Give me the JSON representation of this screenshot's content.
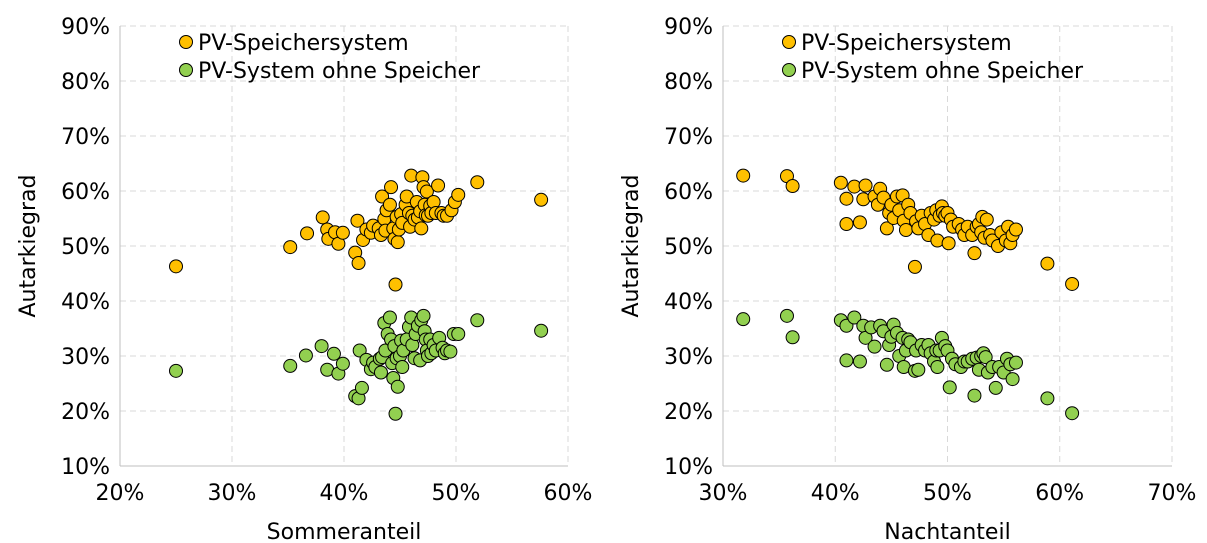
{
  "chart_data": [
    {
      "type": "scatter",
      "xlabel": "Sommeranteil",
      "ylabel": "Autarkiegrad",
      "xlim": [
        0.2,
        0.6
      ],
      "ylim": [
        0.1,
        0.9
      ],
      "xticks": [
        0.2,
        0.3,
        0.4,
        0.5,
        0.6
      ],
      "yticks": [
        0.1,
        0.2,
        0.3,
        0.4,
        0.5,
        0.6,
        0.7,
        0.8,
        0.9
      ],
      "xtick_labels": [
        "20%",
        "30%",
        "40%",
        "50%",
        "60%"
      ],
      "ytick_labels": [
        "10%",
        "20%",
        "30%",
        "40%",
        "50%",
        "60%",
        "70%",
        "80%",
        "90%"
      ],
      "grid": true,
      "legend_position": "top",
      "series": [
        {
          "name": "PV-Speichersystem",
          "color": "#FFC000",
          "points": [
            [
              0.25,
              0.463
            ],
            [
              0.352,
              0.498
            ],
            [
              0.367,
              0.523
            ],
            [
              0.381,
              0.552
            ],
            [
              0.385,
              0.53
            ],
            [
              0.386,
              0.513
            ],
            [
              0.392,
              0.525
            ],
            [
              0.395,
              0.504
            ],
            [
              0.399,
              0.524
            ],
            [
              0.41,
              0.488
            ],
            [
              0.412,
              0.546
            ],
            [
              0.413,
              0.469
            ],
            [
              0.417,
              0.511
            ],
            [
              0.42,
              0.53
            ],
            [
              0.424,
              0.524
            ],
            [
              0.426,
              0.537
            ],
            [
              0.431,
              0.532
            ],
            [
              0.433,
              0.52
            ],
            [
              0.434,
              0.59
            ],
            [
              0.436,
              0.549
            ],
            [
              0.437,
              0.528
            ],
            [
              0.438,
              0.565
            ],
            [
              0.441,
              0.575
            ],
            [
              0.442,
              0.607
            ],
            [
              0.444,
              0.532
            ],
            [
              0.445,
              0.513
            ],
            [
              0.446,
              0.43
            ],
            [
              0.447,
              0.553
            ],
            [
              0.448,
              0.507
            ],
            [
              0.449,
              0.53
            ],
            [
              0.451,
              0.558
            ],
            [
              0.452,
              0.542
            ],
            [
              0.455,
              0.575
            ],
            [
              0.456,
              0.59
            ],
            [
              0.458,
              0.56
            ],
            [
              0.459,
              0.535
            ],
            [
              0.46,
              0.628
            ],
            [
              0.461,
              0.555
            ],
            [
              0.463,
              0.548
            ],
            [
              0.465,
              0.58
            ],
            [
              0.466,
              0.552
            ],
            [
              0.468,
              0.563
            ],
            [
              0.469,
              0.532
            ],
            [
              0.47,
              0.625
            ],
            [
              0.471,
              0.607
            ],
            [
              0.472,
              0.575
            ],
            [
              0.473,
              0.556
            ],
            [
              0.474,
              0.599
            ],
            [
              0.475,
              0.555
            ],
            [
              0.477,
              0.573
            ],
            [
              0.478,
              0.56
            ],
            [
              0.48,
              0.58
            ],
            [
              0.482,
              0.56
            ],
            [
              0.484,
              0.61
            ],
            [
              0.487,
              0.56
            ],
            [
              0.489,
              0.555
            ],
            [
              0.492,
              0.555
            ],
            [
              0.496,
              0.565
            ],
            [
              0.499,
              0.58
            ],
            [
              0.502,
              0.593
            ],
            [
              0.519,
              0.616
            ],
            [
              0.576,
              0.584
            ]
          ]
        },
        {
          "name": "PV-System ohne Speicher",
          "color": "#92D050",
          "points": [
            [
              0.25,
              0.273
            ],
            [
              0.352,
              0.282
            ],
            [
              0.366,
              0.301
            ],
            [
              0.38,
              0.318
            ],
            [
              0.385,
              0.275
            ],
            [
              0.391,
              0.304
            ],
            [
              0.395,
              0.268
            ],
            [
              0.399,
              0.286
            ],
            [
              0.41,
              0.227
            ],
            [
              0.413,
              0.223
            ],
            [
              0.414,
              0.31
            ],
            [
              0.416,
              0.242
            ],
            [
              0.42,
              0.293
            ],
            [
              0.424,
              0.276
            ],
            [
              0.426,
              0.288
            ],
            [
              0.428,
              0.28
            ],
            [
              0.432,
              0.295
            ],
            [
              0.433,
              0.27
            ],
            [
              0.434,
              0.298
            ],
            [
              0.436,
              0.36
            ],
            [
              0.437,
              0.31
            ],
            [
              0.439,
              0.34
            ],
            [
              0.441,
              0.37
            ],
            [
              0.442,
              0.33
            ],
            [
              0.443,
              0.287
            ],
            [
              0.444,
              0.26
            ],
            [
              0.445,
              0.318
            ],
            [
              0.446,
              0.195
            ],
            [
              0.447,
              0.296
            ],
            [
              0.448,
              0.244
            ],
            [
              0.45,
              0.3
            ],
            [
              0.451,
              0.328
            ],
            [
              0.452,
              0.28
            ],
            [
              0.453,
              0.31
            ],
            [
              0.456,
              0.33
            ],
            [
              0.458,
              0.353
            ],
            [
              0.46,
              0.37
            ],
            [
              0.461,
              0.32
            ],
            [
              0.463,
              0.296
            ],
            [
              0.464,
              0.34
            ],
            [
              0.466,
              0.355
            ],
            [
              0.468,
              0.292
            ],
            [
              0.469,
              0.365
            ],
            [
              0.471,
              0.373
            ],
            [
              0.472,
              0.345
            ],
            [
              0.473,
              0.33
            ],
            [
              0.474,
              0.31
            ],
            [
              0.475,
              0.3
            ],
            [
              0.477,
              0.33
            ],
            [
              0.478,
              0.305
            ],
            [
              0.48,
              0.32
            ],
            [
              0.482,
              0.31
            ],
            [
              0.485,
              0.333
            ],
            [
              0.488,
              0.315
            ],
            [
              0.49,
              0.305
            ],
            [
              0.492,
              0.31
            ],
            [
              0.495,
              0.308
            ],
            [
              0.498,
              0.34
            ],
            [
              0.502,
              0.34
            ],
            [
              0.519,
              0.365
            ],
            [
              0.576,
              0.346
            ]
          ]
        }
      ]
    },
    {
      "type": "scatter",
      "xlabel": "Nachtanteil",
      "ylabel": "Autarkiegrad",
      "xlim": [
        0.3,
        0.7
      ],
      "ylim": [
        0.1,
        0.9
      ],
      "xticks": [
        0.3,
        0.4,
        0.5,
        0.6,
        0.7
      ],
      "yticks": [
        0.1,
        0.2,
        0.3,
        0.4,
        0.5,
        0.6,
        0.7,
        0.8,
        0.9
      ],
      "xtick_labels": [
        "30%",
        "40%",
        "50%",
        "60%",
        "70%"
      ],
      "ytick_labels": [
        "10%",
        "20%",
        "30%",
        "40%",
        "50%",
        "60%",
        "70%",
        "80%",
        "90%"
      ],
      "grid": true,
      "legend_position": "top",
      "series": [
        {
          "name": "PV-Speichersystem",
          "color": "#FFC000",
          "points": [
            [
              0.318,
              0.628
            ],
            [
              0.357,
              0.627
            ],
            [
              0.362,
              0.609
            ],
            [
              0.405,
              0.615
            ],
            [
              0.41,
              0.586
            ],
            [
              0.41,
              0.54
            ],
            [
              0.417,
              0.608
            ],
            [
              0.422,
              0.543
            ],
            [
              0.425,
              0.585
            ],
            [
              0.427,
              0.61
            ],
            [
              0.435,
              0.59
            ],
            [
              0.438,
              0.575
            ],
            [
              0.44,
              0.604
            ],
            [
              0.443,
              0.588
            ],
            [
              0.446,
              0.532
            ],
            [
              0.448,
              0.56
            ],
            [
              0.45,
              0.575
            ],
            [
              0.452,
              0.551
            ],
            [
              0.455,
              0.59
            ],
            [
              0.457,
              0.565
            ],
            [
              0.46,
              0.592
            ],
            [
              0.461,
              0.546
            ],
            [
              0.463,
              0.529
            ],
            [
              0.465,
              0.575
            ],
            [
              0.467,
              0.56
            ],
            [
              0.471,
              0.462
            ],
            [
              0.472,
              0.545
            ],
            [
              0.474,
              0.532
            ],
            [
              0.477,
              0.555
            ],
            [
              0.48,
              0.54
            ],
            [
              0.483,
              0.52
            ],
            [
              0.485,
              0.56
            ],
            [
              0.488,
              0.548
            ],
            [
              0.49,
              0.565
            ],
            [
              0.491,
              0.51
            ],
            [
              0.493,
              0.555
            ],
            [
              0.495,
              0.572
            ],
            [
              0.496,
              0.56
            ],
            [
              0.498,
              0.555
            ],
            [
              0.5,
              0.56
            ],
            [
              0.501,
              0.505
            ],
            [
              0.503,
              0.548
            ],
            [
              0.505,
              0.535
            ],
            [
              0.51,
              0.54
            ],
            [
              0.513,
              0.53
            ],
            [
              0.515,
              0.52
            ],
            [
              0.518,
              0.535
            ],
            [
              0.522,
              0.52
            ],
            [
              0.524,
              0.487
            ],
            [
              0.526,
              0.535
            ],
            [
              0.528,
              0.54
            ],
            [
              0.53,
              0.525
            ],
            [
              0.531,
              0.553
            ],
            [
              0.533,
              0.515
            ],
            [
              0.535,
              0.548
            ],
            [
              0.538,
              0.52
            ],
            [
              0.54,
              0.51
            ],
            [
              0.545,
              0.5
            ],
            [
              0.548,
              0.525
            ],
            [
              0.552,
              0.51
            ],
            [
              0.554,
              0.535
            ],
            [
              0.556,
              0.505
            ],
            [
              0.558,
              0.52
            ],
            [
              0.561,
              0.53
            ],
            [
              0.589,
              0.468
            ],
            [
              0.611,
              0.431
            ]
          ]
        },
        {
          "name": "PV-System ohne Speicher",
          "color": "#92D050",
          "points": [
            [
              0.318,
              0.367
            ],
            [
              0.357,
              0.373
            ],
            [
              0.362,
              0.334
            ],
            [
              0.405,
              0.365
            ],
            [
              0.41,
              0.355
            ],
            [
              0.41,
              0.292
            ],
            [
              0.417,
              0.37
            ],
            [
              0.422,
              0.29
            ],
            [
              0.425,
              0.355
            ],
            [
              0.427,
              0.333
            ],
            [
              0.432,
              0.352
            ],
            [
              0.435,
              0.317
            ],
            [
              0.44,
              0.355
            ],
            [
              0.443,
              0.345
            ],
            [
              0.446,
              0.284
            ],
            [
              0.448,
              0.32
            ],
            [
              0.45,
              0.335
            ],
            [
              0.452,
              0.357
            ],
            [
              0.455,
              0.342
            ],
            [
              0.457,
              0.3
            ],
            [
              0.46,
              0.333
            ],
            [
              0.461,
              0.28
            ],
            [
              0.463,
              0.31
            ],
            [
              0.465,
              0.33
            ],
            [
              0.467,
              0.325
            ],
            [
              0.471,
              0.273
            ],
            [
              0.472,
              0.31
            ],
            [
              0.474,
              0.275
            ],
            [
              0.477,
              0.32
            ],
            [
              0.48,
              0.31
            ],
            [
              0.483,
              0.32
            ],
            [
              0.485,
              0.305
            ],
            [
              0.488,
              0.29
            ],
            [
              0.49,
              0.31
            ],
            [
              0.491,
              0.28
            ],
            [
              0.493,
              0.31
            ],
            [
              0.495,
              0.333
            ],
            [
              0.498,
              0.318
            ],
            [
              0.5,
              0.31
            ],
            [
              0.502,
              0.243
            ],
            [
              0.504,
              0.295
            ],
            [
              0.507,
              0.285
            ],
            [
              0.512,
              0.28
            ],
            [
              0.515,
              0.29
            ],
            [
              0.518,
              0.29
            ],
            [
              0.522,
              0.295
            ],
            [
              0.524,
              0.228
            ],
            [
              0.526,
              0.297
            ],
            [
              0.528,
              0.275
            ],
            [
              0.53,
              0.3
            ],
            [
              0.532,
              0.305
            ],
            [
              0.534,
              0.298
            ],
            [
              0.536,
              0.27
            ],
            [
              0.54,
              0.28
            ],
            [
              0.543,
              0.242
            ],
            [
              0.546,
              0.28
            ],
            [
              0.55,
              0.27
            ],
            [
              0.553,
              0.295
            ],
            [
              0.556,
              0.285
            ],
            [
              0.558,
              0.258
            ],
            [
              0.561,
              0.288
            ],
            [
              0.589,
              0.223
            ],
            [
              0.611,
              0.196
            ]
          ]
        }
      ]
    }
  ]
}
